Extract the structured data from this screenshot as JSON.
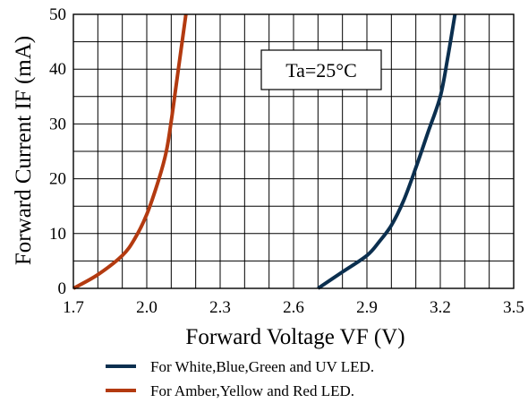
{
  "chart_data": {
    "type": "line",
    "xlabel": "Forward Voltage VF (V)",
    "ylabel": "Forward Current IF (mA)",
    "xlim": [
      1.7,
      3.5
    ],
    "ylim": [
      0,
      50
    ],
    "x_ticks": [
      "1.7",
      "2.0",
      "2.3",
      "2.6",
      "2.9",
      "3.2",
      "3.5"
    ],
    "y_ticks": [
      "0",
      "10",
      "20",
      "30",
      "40",
      "50"
    ],
    "grid": true,
    "annotation": "Ta=25°C",
    "legend_position": "bottom",
    "series": [
      {
        "name": "For White,Blue,Green and UV LED.",
        "color": "#0b2f4f",
        "x": [
          2.7,
          2.8,
          2.9,
          2.95,
          3.0,
          3.05,
          3.1,
          3.15,
          3.2,
          3.23,
          3.26
        ],
        "y": [
          0,
          3,
          6,
          8.5,
          11.5,
          16,
          22,
          28.5,
          35,
          42,
          50
        ]
      },
      {
        "name": "For Amber,Yellow and Red LED.",
        "color": "#b33a10",
        "x": [
          1.7,
          1.8,
          1.9,
          1.95,
          2.0,
          2.05,
          2.08,
          2.1,
          2.12,
          2.14,
          2.16
        ],
        "y": [
          0,
          2.5,
          6,
          9,
          13.5,
          20,
          25,
          30.5,
          37,
          43.5,
          50
        ]
      }
    ]
  }
}
